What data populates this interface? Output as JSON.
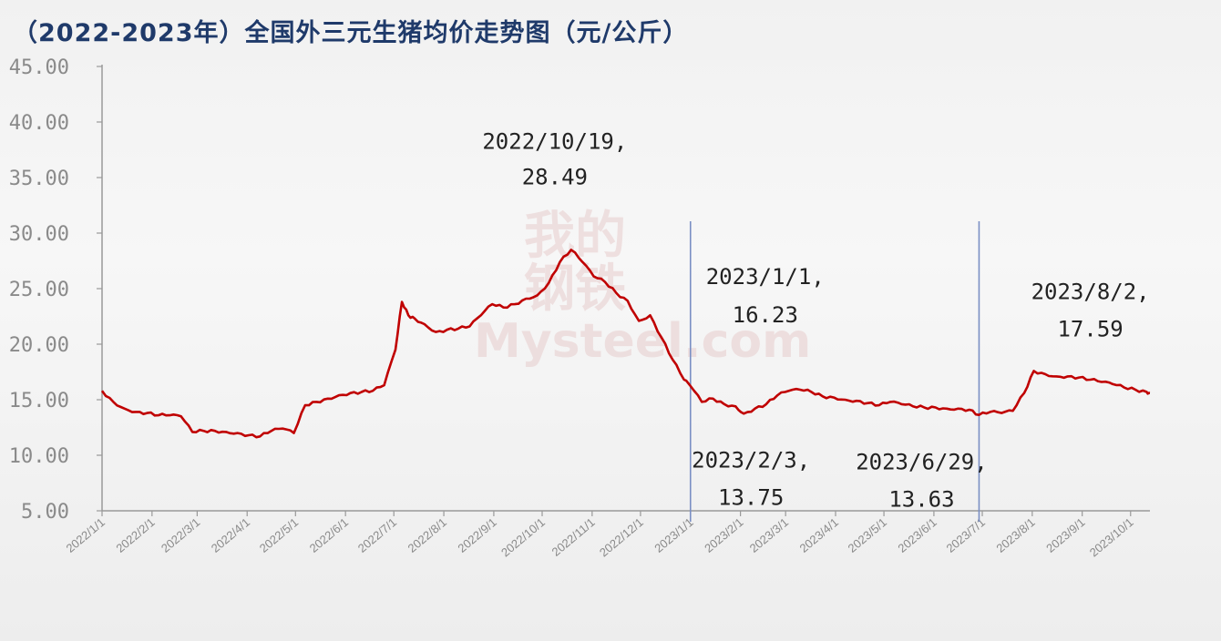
{
  "chart_data": {
    "type": "line",
    "title": "（2022-2023年）全国外三元生猪均价走势图（元/公斤）",
    "ylim": [
      5,
      45
    ],
    "yticks": [
      "45.00",
      "40.00",
      "35.00",
      "30.00",
      "25.00",
      "20.00",
      "15.00",
      "10.00",
      "5.00"
    ],
    "xticks": [
      "2022/1/1",
      "2022/2/1",
      "2022/3/1",
      "2022/4/1",
      "2022/5/1",
      "2022/6/1",
      "2022/7/1",
      "2022/8/1",
      "2022/9/1",
      "2022/10/1",
      "2022/11/1",
      "2022/12/1",
      "2023/1/1",
      "2023/2/1",
      "2023/3/1",
      "2023/4/1",
      "2023/5/1",
      "2023/6/1",
      "2023/7/1",
      "2023/8/1",
      "2023/9/1",
      "2023/10/1"
    ],
    "grid": false,
    "colors": {
      "line": "#c00000",
      "vline": "#7a8fc4"
    },
    "series": [
      {
        "x": [
          "2022/1/1",
          "2022/1/8",
          "2022/1/15",
          "2022/1/22",
          "2022/1/29",
          "2022/2/5",
          "2022/2/12",
          "2022/2/19",
          "2022/2/26",
          "2022/3/5",
          "2022/3/12",
          "2022/3/19",
          "2022/3/26",
          "2022/4/2",
          "2022/4/9",
          "2022/4/16",
          "2022/4/23",
          "2022/4/30",
          "2022/5/7",
          "2022/5/14",
          "2022/5/21",
          "2022/5/28",
          "2022/6/4",
          "2022/6/11",
          "2022/6/18",
          "2022/6/25",
          "2022/7/2",
          "2022/7/6",
          "2022/7/10",
          "2022/7/14",
          "2022/7/20",
          "2022/7/27",
          "2022/8/3",
          "2022/8/10",
          "2022/8/17",
          "2022/8/24",
          "2022/8/31",
          "2022/9/7",
          "2022/9/14",
          "2022/9/21",
          "2022/9/28",
          "2022/10/5",
          "2022/10/12",
          "2022/10/19",
          "2022/10/26",
          "2022/11/2",
          "2022/11/9",
          "2022/11/16",
          "2022/11/23",
          "2022/11/30",
          "2022/12/7",
          "2022/12/14",
          "2022/12/21",
          "2022/12/28",
          "2023/1/1",
          "2023/1/8",
          "2023/1/15",
          "2023/1/22",
          "2023/1/29",
          "2023/2/3",
          "2023/2/10",
          "2023/2/17",
          "2023/2/24",
          "2023/3/3",
          "2023/3/10",
          "2023/3/17",
          "2023/3/24",
          "2023/3/31",
          "2023/4/7",
          "2023/4/14",
          "2023/4/21",
          "2023/4/28",
          "2023/5/5",
          "2023/5/12",
          "2023/5/19",
          "2023/5/26",
          "2023/6/2",
          "2023/6/9",
          "2023/6/16",
          "2023/6/23",
          "2023/6/29",
          "2023/7/6",
          "2023/7/13",
          "2023/7/20",
          "2023/7/27",
          "2023/8/2",
          "2023/8/9",
          "2023/8/16",
          "2023/8/23",
          "2023/8/30",
          "2023/9/6",
          "2023/9/13",
          "2023/9/20",
          "2023/9/27",
          "2023/10/4",
          "2023/10/11",
          "2023/10/13"
        ],
        "y": [
          15.8,
          14.8,
          14.2,
          13.9,
          13.8,
          13.6,
          13.6,
          13.5,
          12.1,
          12.2,
          12.2,
          12.1,
          12.0,
          11.8,
          11.7,
          12.2,
          12.4,
          12.0,
          14.5,
          14.8,
          15.1,
          15.4,
          15.6,
          15.7,
          15.8,
          16.3,
          19.5,
          23.8,
          22.6,
          22.3,
          21.8,
          21.1,
          21.3,
          21.4,
          21.6,
          22.6,
          23.6,
          23.3,
          23.6,
          24.1,
          24.4,
          25.5,
          27.4,
          28.49,
          27.4,
          26.1,
          25.6,
          24.6,
          23.9,
          22.1,
          22.6,
          20.6,
          18.6,
          16.8,
          16.23,
          14.8,
          15.1,
          14.6,
          14.4,
          13.75,
          14.2,
          14.6,
          15.4,
          15.8,
          15.9,
          15.7,
          15.3,
          15.2,
          15.0,
          14.9,
          14.7,
          14.5,
          14.8,
          14.6,
          14.4,
          14.3,
          14.3,
          14.2,
          14.2,
          14.1,
          13.63,
          13.9,
          13.8,
          14.0,
          15.6,
          17.59,
          17.3,
          17.1,
          17.1,
          17.0,
          16.8,
          16.6,
          16.4,
          16.1,
          15.9,
          15.7,
          15.6
        ]
      }
    ],
    "annotations": [
      {
        "date": "2022/10/19",
        "value": "28.49"
      },
      {
        "date": "2023/1/1",
        "value": "16.23"
      },
      {
        "date": "2023/2/3",
        "value": "13.75"
      },
      {
        "date": "2023/6/29",
        "value": "13.63"
      },
      {
        "date": "2023/8/2",
        "value": "17.59"
      }
    ],
    "vlines": [
      "2023/1/1",
      "2023/6/29"
    ],
    "watermark": [
      "我的",
      "钢铁",
      "Mysteel.com"
    ]
  }
}
